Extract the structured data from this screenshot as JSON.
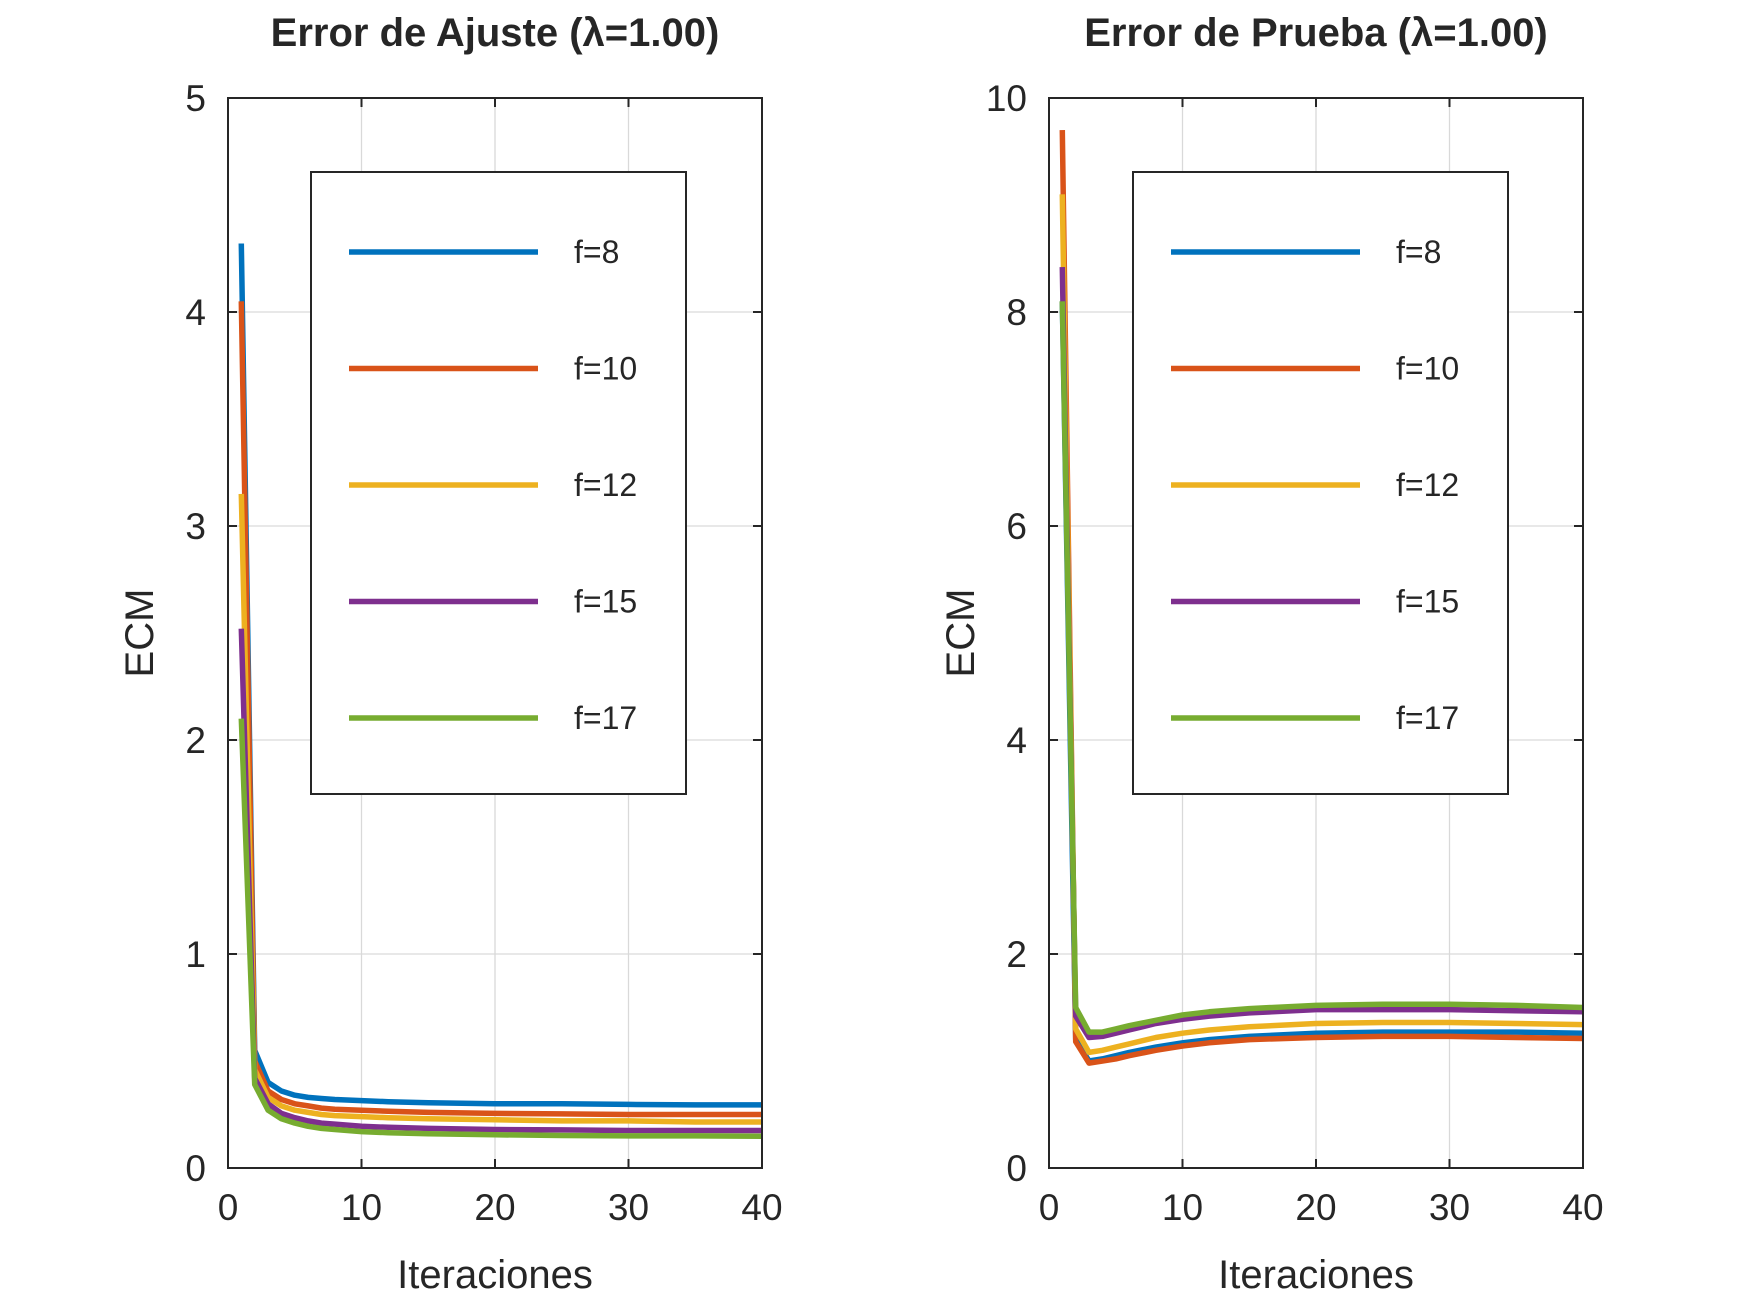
{
  "colors": {
    "f=8": "#0072BD",
    "f=10": "#D95319",
    "f=12": "#EDB120",
    "f=15": "#7E2F8E",
    "f=17": "#77AC30"
  },
  "chart_data": [
    {
      "type": "line",
      "title": "Error de Ajuste (λ=1.00)",
      "xlabel": "Iteraciones",
      "ylabel": "ECM",
      "xlim": [
        0,
        40
      ],
      "ylim": [
        0,
        5
      ],
      "xticks": [
        0,
        10,
        20,
        30,
        40
      ],
      "yticks": [
        0,
        1,
        2,
        3,
        4,
        5
      ],
      "xtick_labels": [
        "0",
        "10",
        "20",
        "30",
        "40"
      ],
      "ytick_labels": [
        "0",
        "1",
        "2",
        "3",
        "4",
        "5"
      ],
      "grid": true,
      "legend_position": "inside-upper-center",
      "x": [
        1,
        2,
        3,
        4,
        5,
        6,
        7,
        8,
        10,
        12,
        15,
        20,
        25,
        30,
        35,
        40
      ],
      "series": [
        {
          "name": "f=8",
          "values": [
            4.32,
            0.55,
            0.4,
            0.36,
            0.34,
            0.33,
            0.325,
            0.32,
            0.315,
            0.31,
            0.305,
            0.3,
            0.3,
            0.297,
            0.295,
            0.295
          ]
        },
        {
          "name": "f=10",
          "values": [
            4.05,
            0.5,
            0.36,
            0.32,
            0.3,
            0.29,
            0.28,
            0.275,
            0.27,
            0.265,
            0.26,
            0.255,
            0.253,
            0.25,
            0.25,
            0.25
          ]
        },
        {
          "name": "f=12",
          "values": [
            3.15,
            0.46,
            0.33,
            0.29,
            0.27,
            0.26,
            0.25,
            0.245,
            0.24,
            0.235,
            0.23,
            0.225,
            0.22,
            0.22,
            0.215,
            0.215
          ]
        },
        {
          "name": "f=15",
          "values": [
            2.52,
            0.42,
            0.3,
            0.255,
            0.235,
            0.22,
            0.21,
            0.205,
            0.195,
            0.19,
            0.185,
            0.18,
            0.178,
            0.175,
            0.175,
            0.175
          ]
        },
        {
          "name": "f=17",
          "values": [
            2.1,
            0.39,
            0.27,
            0.23,
            0.21,
            0.195,
            0.185,
            0.18,
            0.17,
            0.165,
            0.16,
            0.155,
            0.152,
            0.15,
            0.15,
            0.148
          ]
        }
      ]
    },
    {
      "type": "line",
      "title": "Error de Prueba (λ=1.00)",
      "xlabel": "Iteraciones",
      "ylabel": "ECM",
      "xlim": [
        0,
        40
      ],
      "ylim": [
        0,
        10
      ],
      "xticks": [
        0,
        10,
        20,
        30,
        40
      ],
      "yticks": [
        0,
        2,
        4,
        6,
        8,
        10
      ],
      "xtick_labels": [
        "0",
        "10",
        "20",
        "30",
        "40"
      ],
      "ytick_labels": [
        "0",
        "2",
        "4",
        "6",
        "8",
        "10"
      ],
      "grid": true,
      "legend_position": "inside-upper-center",
      "x": [
        1,
        2,
        3,
        4,
        5,
        6,
        8,
        10,
        12,
        15,
        20,
        25,
        30,
        35,
        40
      ],
      "series": [
        {
          "name": "f=8",
          "values": [
            8.1,
            1.2,
            1.0,
            1.02,
            1.05,
            1.08,
            1.13,
            1.17,
            1.2,
            1.23,
            1.26,
            1.27,
            1.27,
            1.27,
            1.26
          ]
        },
        {
          "name": "f=10",
          "values": [
            9.7,
            1.18,
            0.98,
            1.0,
            1.02,
            1.05,
            1.1,
            1.14,
            1.17,
            1.2,
            1.22,
            1.23,
            1.23,
            1.22,
            1.21
          ]
        },
        {
          "name": "f=12",
          "values": [
            9.1,
            1.3,
            1.08,
            1.1,
            1.13,
            1.16,
            1.22,
            1.26,
            1.29,
            1.32,
            1.35,
            1.36,
            1.36,
            1.35,
            1.34
          ]
        },
        {
          "name": "f=15",
          "values": [
            8.42,
            1.42,
            1.22,
            1.23,
            1.26,
            1.29,
            1.35,
            1.39,
            1.42,
            1.45,
            1.48,
            1.48,
            1.48,
            1.47,
            1.46
          ]
        },
        {
          "name": "f=17",
          "values": [
            8.1,
            1.5,
            1.27,
            1.27,
            1.3,
            1.33,
            1.38,
            1.43,
            1.46,
            1.49,
            1.52,
            1.53,
            1.53,
            1.52,
            1.5
          ]
        }
      ]
    }
  ]
}
